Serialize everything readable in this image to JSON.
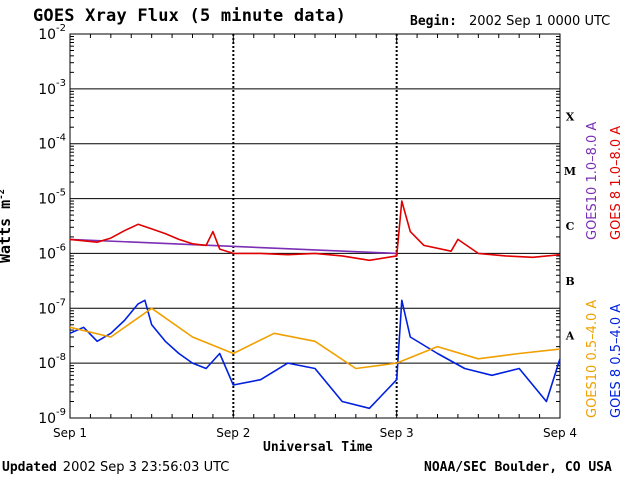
{
  "header": {
    "title": "GOES Xray Flux (5 minute data)",
    "begin_label": "Begin:",
    "begin_value": "2002 Sep 1 0000 UTC"
  },
  "footer": {
    "updated_label": "Updated",
    "updated_value": "2002 Sep  3 23:56:03 UTC",
    "credit": "NOAA/SEC Boulder, CO USA"
  },
  "axes": {
    "xlabel": "Universal Time",
    "ylabel_text": "Watts m",
    "ylabel_exp": "-2"
  },
  "chart_data": {
    "type": "line",
    "title": "GOES Xray Flux (5 minute data)",
    "xlabel": "Universal Time",
    "ylabel": "Watts m-2",
    "yscale": "log",
    "ylim": [
      1e-09,
      0.01
    ],
    "xlim": [
      "2002-09-01",
      "2002-09-04"
    ],
    "x_tick_labels": [
      "Sep 1",
      "Sep 2",
      "Sep 3",
      "Sep 4"
    ],
    "y_tick_labels": [
      {
        "base": "10",
        "exp": "-9"
      },
      {
        "base": "10",
        "exp": "-8"
      },
      {
        "base": "10",
        "exp": "-7"
      },
      {
        "base": "10",
        "exp": "-6"
      },
      {
        "base": "10",
        "exp": "-5"
      },
      {
        "base": "10",
        "exp": "-4"
      },
      {
        "base": "10",
        "exp": "-3"
      },
      {
        "base": "10",
        "exp": "-2"
      }
    ],
    "flare_classes": [
      {
        "label": "X",
        "flux": 0.0001
      },
      {
        "label": "M",
        "flux": 1e-05
      },
      {
        "label": "C",
        "flux": 1e-06
      },
      {
        "label": "B",
        "flux": 1e-07
      },
      {
        "label": "A",
        "flux": 1e-08
      }
    ],
    "grid": "horizontal at decades",
    "legend_position": "right, vertical",
    "series": [
      {
        "name": "GOES10 1.0-8.0 A",
        "color": "#7b2fb5",
        "points": [
          [
            "2002-09-01T00:00",
            1.8e-06
          ],
          [
            "2002-09-03T00:00",
            1e-06
          ]
        ]
      },
      {
        "name": "GOES 8 1.0-8.0 A",
        "color": "#e00000",
        "points": [
          [
            "2002-09-01T00:00",
            1.8e-06
          ],
          [
            "2002-09-01T02:00",
            1.7e-06
          ],
          [
            "2002-09-01T04:00",
            1.6e-06
          ],
          [
            "2002-09-01T06:00",
            1.9e-06
          ],
          [
            "2002-09-01T08:00",
            2.6e-06
          ],
          [
            "2002-09-01T10:00",
            3.4e-06
          ],
          [
            "2002-09-01T12:00",
            2.8e-06
          ],
          [
            "2002-09-01T14:00",
            2.3e-06
          ],
          [
            "2002-09-01T16:00",
            1.8e-06
          ],
          [
            "2002-09-01T18:00",
            1.5e-06
          ],
          [
            "2002-09-01T20:00",
            1.4e-06
          ],
          [
            "2002-09-01T21:00",
            2.5e-06
          ],
          [
            "2002-09-01T22:00",
            1.2e-06
          ],
          [
            "2002-09-02T00:00",
            1e-06
          ],
          [
            "2002-09-02T04:00",
            1e-06
          ],
          [
            "2002-09-02T08:00",
            9.5e-07
          ],
          [
            "2002-09-02T12:00",
            1e-06
          ],
          [
            "2002-09-02T16:00",
            9e-07
          ],
          [
            "2002-09-02T20:00",
            7.5e-07
          ],
          [
            "2002-09-03T00:00",
            9e-07
          ],
          [
            "2002-09-03T00:45",
            9e-06
          ],
          [
            "2002-09-03T02:00",
            2.5e-06
          ],
          [
            "2002-09-03T04:00",
            1.4e-06
          ],
          [
            "2002-09-03T08:00",
            1.1e-06
          ],
          [
            "2002-09-03T09:00",
            1.8e-06
          ],
          [
            "2002-09-03T12:00",
            1e-06
          ],
          [
            "2002-09-03T16:00",
            9e-07
          ],
          [
            "2002-09-03T20:00",
            8.5e-07
          ],
          [
            "2002-09-04T00:00",
            9.5e-07
          ]
        ]
      },
      {
        "name": "GOES10 0.5-4.0 A",
        "color": "#f0a000",
        "points": [
          [
            "2002-09-01T00:00",
            4.5e-08
          ],
          [
            "2002-09-01T06:00",
            3e-08
          ],
          [
            "2002-09-01T12:00",
            1e-07
          ],
          [
            "2002-09-01T18:00",
            3e-08
          ],
          [
            "2002-09-02T00:00",
            1.5e-08
          ],
          [
            "2002-09-02T06:00",
            3.5e-08
          ],
          [
            "2002-09-02T12:00",
            2.5e-08
          ],
          [
            "2002-09-02T18:00",
            8e-09
          ],
          [
            "2002-09-03T00:00",
            1e-08
          ],
          [
            "2002-09-03T06:00",
            2e-08
          ],
          [
            "2002-09-03T12:00",
            1.2e-08
          ],
          [
            "2002-09-03T18:00",
            1.5e-08
          ],
          [
            "2002-09-04T00:00",
            1.8e-08
          ]
        ]
      },
      {
        "name": "GOES 8 0.5-4.0 A",
        "color": "#0020e0",
        "points": [
          [
            "2002-09-01T00:00",
            3.5e-08
          ],
          [
            "2002-09-01T02:00",
            4.5e-08
          ],
          [
            "2002-09-01T04:00",
            2.5e-08
          ],
          [
            "2002-09-01T06:00",
            3.5e-08
          ],
          [
            "2002-09-01T08:00",
            6e-08
          ],
          [
            "2002-09-01T10:00",
            1.2e-07
          ],
          [
            "2002-09-01T11:00",
            1.4e-07
          ],
          [
            "2002-09-01T12:00",
            5e-08
          ],
          [
            "2002-09-01T14:00",
            2.5e-08
          ],
          [
            "2002-09-01T16:00",
            1.5e-08
          ],
          [
            "2002-09-01T18:00",
            1e-08
          ],
          [
            "2002-09-01T20:00",
            8e-09
          ],
          [
            "2002-09-01T22:00",
            1.5e-08
          ],
          [
            "2002-09-02T00:00",
            4e-09
          ],
          [
            "2002-09-02T04:00",
            5e-09
          ],
          [
            "2002-09-02T08:00",
            1e-08
          ],
          [
            "2002-09-02T12:00",
            8e-09
          ],
          [
            "2002-09-02T16:00",
            2e-09
          ],
          [
            "2002-09-02T20:00",
            1.5e-09
          ],
          [
            "2002-09-03T00:00",
            5e-09
          ],
          [
            "2002-09-03T00:45",
            1.4e-07
          ],
          [
            "2002-09-03T02:00",
            3e-08
          ],
          [
            "2002-09-03T06:00",
            1.5e-08
          ],
          [
            "2002-09-03T10:00",
            8e-09
          ],
          [
            "2002-09-03T14:00",
            6e-09
          ],
          [
            "2002-09-03T18:00",
            8e-09
          ],
          [
            "2002-09-03T22:00",
            2e-09
          ],
          [
            "2002-09-04T00:00",
            1.2e-08
          ]
        ]
      }
    ],
    "legend": [
      {
        "label": "GOES10 1.0–8.0 A",
        "color": "#7b2fb5"
      },
      {
        "label": "GOES 8 1.0–8.0 A",
        "color": "#e00000"
      },
      {
        "label": "GOES10 0.5–4.0 A",
        "color": "#f0a000"
      },
      {
        "label": "GOES 8 0.5–4.0 A",
        "color": "#0020e0"
      }
    ]
  }
}
